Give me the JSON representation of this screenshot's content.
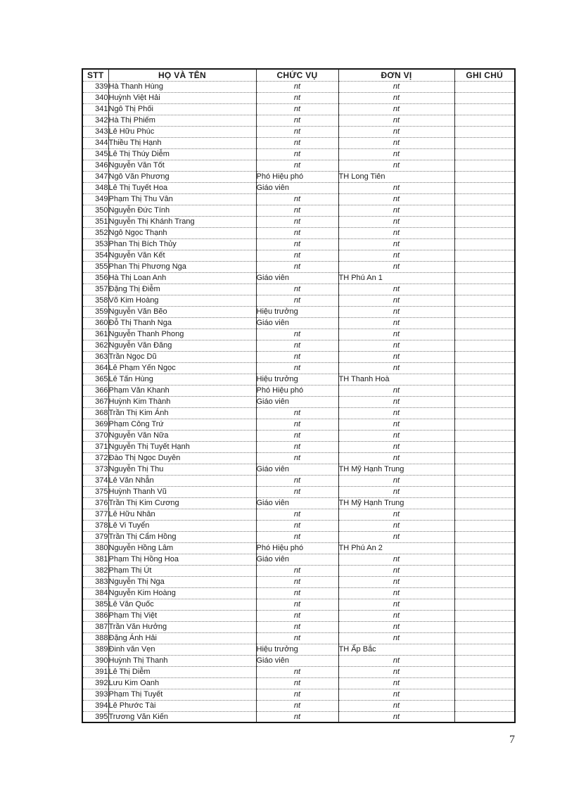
{
  "page": {
    "number": "7"
  },
  "table": {
    "headers": {
      "stt": "STT",
      "name": "HỌ VÀ TÊN",
      "position": "CHỨC VỤ",
      "unit": "ĐƠN VỊ",
      "note": "GHI CHÚ"
    },
    "ditto_mark": "nt",
    "rows": [
      {
        "stt": "339",
        "name": "Hà Thanh Hùng",
        "position": "nt",
        "unit": "nt",
        "note": ""
      },
      {
        "stt": "340",
        "name": "Huỳnh Việt Hải",
        "position": "nt",
        "unit": "nt",
        "note": ""
      },
      {
        "stt": "341",
        "name": "Ngô Thị Phối",
        "position": "nt",
        "unit": "nt",
        "note": ""
      },
      {
        "stt": "342",
        "name": "Hà Thị Phiếm",
        "position": "nt",
        "unit": "nt",
        "note": ""
      },
      {
        "stt": "343",
        "name": "Lê Hữu Phúc",
        "position": "nt",
        "unit": "nt",
        "note": ""
      },
      {
        "stt": "344",
        "name": "Thiều Thị Hạnh",
        "position": "nt",
        "unit": "nt",
        "note": ""
      },
      {
        "stt": "345",
        "name": "Lê Thị Thúy Diễm",
        "position": "nt",
        "unit": "nt",
        "note": ""
      },
      {
        "stt": "346",
        "name": "Nguyễn Văn Tốt",
        "position": "nt",
        "unit": "nt",
        "note": ""
      },
      {
        "stt": "347",
        "name": "Ngô Văn Phương",
        "position": "Phó Hiệu phó",
        "unit": "TH Long Tiên",
        "note": ""
      },
      {
        "stt": "348",
        "name": "Lê Thị Tuyết Hoa",
        "position": "Giáo viên",
        "unit": "nt",
        "note": ""
      },
      {
        "stt": "349",
        "name": "Phạm Thị Thu Vân",
        "position": "nt",
        "unit": "nt",
        "note": ""
      },
      {
        "stt": "350",
        "name": "Nguyễn Đức Tính",
        "position": "nt",
        "unit": "nt",
        "note": ""
      },
      {
        "stt": "351",
        "name": "Nguyễn Thị Khánh Trang",
        "position": "nt",
        "unit": "nt",
        "note": ""
      },
      {
        "stt": "352",
        "name": "Ngô Ngọc Thạnh",
        "position": "nt",
        "unit": "nt",
        "note": ""
      },
      {
        "stt": "353",
        "name": "Phan Thị Bích Thủy",
        "position": "nt",
        "unit": "nt",
        "note": ""
      },
      {
        "stt": "354",
        "name": "Nguyễn Văn Kết",
        "position": "nt",
        "unit": "nt",
        "note": ""
      },
      {
        "stt": "355",
        "name": "Phan Thị Phương Nga",
        "position": "nt",
        "unit": "nt",
        "note": ""
      },
      {
        "stt": "356",
        "name": "Hà Thị Loan Anh",
        "position": "Giáo viên",
        "unit": "TH Phú An 1",
        "note": ""
      },
      {
        "stt": "357",
        "name": "Đặng Thị Điễm",
        "position": "nt",
        "unit": "nt",
        "note": ""
      },
      {
        "stt": "358",
        "name": "Võ Kim Hoàng",
        "position": "nt",
        "unit": "nt",
        "note": ""
      },
      {
        "stt": "359",
        "name": "Nguyễn Văn Bẽo",
        "position": "Hiệu trưởng",
        "unit": "nt",
        "note": ""
      },
      {
        "stt": "360",
        "name": "Đỗ Thị Thanh Nga",
        "position": "Giáo viên",
        "unit": "nt",
        "note": ""
      },
      {
        "stt": "361",
        "name": "Nguyễn Thanh Phong",
        "position": "nt",
        "unit": "nt",
        "note": ""
      },
      {
        "stt": "362",
        "name": "Nguyễn Văn Đăng",
        "position": "nt",
        "unit": "nt",
        "note": ""
      },
      {
        "stt": "363",
        "name": "Trần Ngọc Dũ",
        "position": "nt",
        "unit": "nt",
        "note": ""
      },
      {
        "stt": "364",
        "name": "Lê Phạm Yến Ngọc",
        "position": "nt",
        "unit": "nt",
        "note": ""
      },
      {
        "stt": "365",
        "name": "Lê Tấn Hùng",
        "position": "Hiệu trưởng",
        "unit": "TH Thanh Hoà",
        "note": ""
      },
      {
        "stt": "366",
        "name": "Phạm Văn Khanh",
        "position": "Phó Hiệu phó",
        "unit": "nt",
        "note": ""
      },
      {
        "stt": "367",
        "name": "Huỳnh Kim Thành",
        "position": "Giáo viên",
        "unit": "nt",
        "note": ""
      },
      {
        "stt": "368",
        "name": "Trần Thị Kim Ánh",
        "position": "nt",
        "unit": "nt",
        "note": ""
      },
      {
        "stt": "369",
        "name": "Phạm Công Trứ",
        "position": "nt",
        "unit": "nt",
        "note": ""
      },
      {
        "stt": "370",
        "name": "Nguyễn Văn Nữa",
        "position": "nt",
        "unit": "nt",
        "note": ""
      },
      {
        "stt": "371",
        "name": "Nguyễn Thị Tuyết Hạnh",
        "position": "nt",
        "unit": "nt",
        "note": ""
      },
      {
        "stt": "372",
        "name": "Đào Thị Ngọc Duyên",
        "position": "nt",
        "unit": "nt",
        "note": ""
      },
      {
        "stt": "373",
        "name": "Nguyễn Thị Thu",
        "position": "Giáo viên",
        "unit": "TH Mỹ Hạnh Trung",
        "note": ""
      },
      {
        "stt": "374",
        "name": "Lê Văn Nhẫn",
        "position": "nt",
        "unit": "nt",
        "note": ""
      },
      {
        "stt": "375",
        "name": "Huỳnh Thanh Vũ",
        "position": "nt",
        "unit": "nt",
        "note": ""
      },
      {
        "stt": "376",
        "name": "Trần Thị Kim Cương",
        "position": "Giáo viên",
        "unit": "TH Mỹ Hạnh Trung",
        "note": ""
      },
      {
        "stt": "377",
        "name": "Lê Hữu Nhân",
        "position": "nt",
        "unit": "nt",
        "note": ""
      },
      {
        "stt": "378",
        "name": "Lê Vi Tuyển",
        "position": "nt",
        "unit": "nt",
        "note": ""
      },
      {
        "stt": "379",
        "name": "Trần Thị Cẩm Hồng",
        "position": "nt",
        "unit": "nt",
        "note": ""
      },
      {
        "stt": "380",
        "name": "Nguyễn Hồng Lâm",
        "position": "Phó Hiệu phó",
        "unit": "TH Phú An 2",
        "note": ""
      },
      {
        "stt": "381",
        "name": "Phạm Thị Hồng Hoa",
        "position": "Giáo viên",
        "unit": "nt",
        "note": ""
      },
      {
        "stt": "382",
        "name": "Phạm Thị Út",
        "position": "nt",
        "unit": "nt",
        "note": ""
      },
      {
        "stt": "383",
        "name": "Nguyễn Thị Nga",
        "position": "nt",
        "unit": "nt",
        "note": ""
      },
      {
        "stt": "384",
        "name": "Nguyễn Kim Hoàng",
        "position": "nt",
        "unit": "nt",
        "note": ""
      },
      {
        "stt": "385",
        "name": "Lê Văn Quốc",
        "position": "nt",
        "unit": "nt",
        "note": ""
      },
      {
        "stt": "386",
        "name": "Phạm Thị Việt",
        "position": "nt",
        "unit": "nt",
        "note": ""
      },
      {
        "stt": "387",
        "name": "Trần Văn Hưởng",
        "position": "nt",
        "unit": "nt",
        "note": ""
      },
      {
        "stt": "388",
        "name": "Đặng Ánh Hải",
        "position": "nt",
        "unit": "nt",
        "note": ""
      },
      {
        "stt": "389",
        "name": "Đinh văn Vẹn",
        "position": "Hiệu trưởng",
        "unit": "TH Ấp Bắc",
        "note": ""
      },
      {
        "stt": "390",
        "name": "Huỳnh Thị Thanh",
        "position": "Giáo viên",
        "unit": "nt",
        "note": ""
      },
      {
        "stt": "391",
        "name": "Lê Thị Diễm",
        "position": "nt",
        "unit": "nt",
        "note": ""
      },
      {
        "stt": "392",
        "name": "Lưu Kim Oanh",
        "position": "nt",
        "unit": "nt",
        "note": ""
      },
      {
        "stt": "393",
        "name": "Phạm Thị Tuyết",
        "position": "nt",
        "unit": "nt",
        "note": ""
      },
      {
        "stt": "394",
        "name": "Lê Phước Tài",
        "position": "nt",
        "unit": "nt",
        "note": ""
      },
      {
        "stt": "395",
        "name": "Trương Văn Kiến",
        "position": "nt",
        "unit": "nt",
        "note": ""
      }
    ]
  }
}
